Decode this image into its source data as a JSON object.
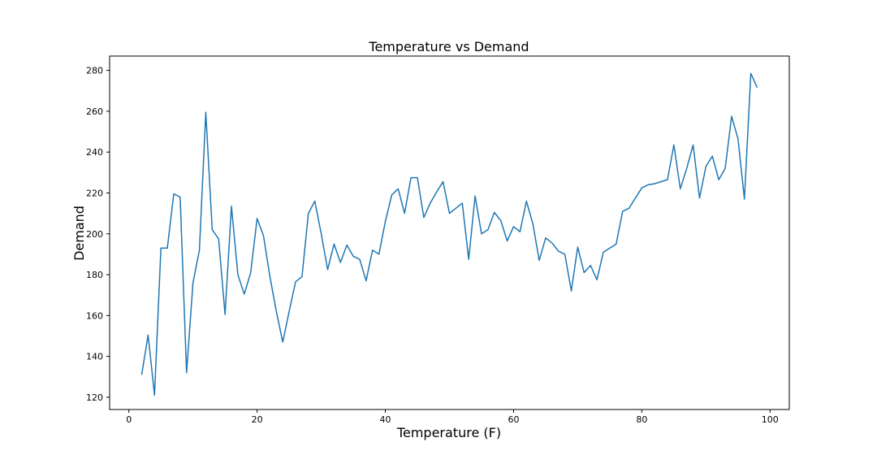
{
  "chart_data": {
    "type": "line",
    "title": "Temperature vs Demand",
    "xlabel": "Temperature (F)",
    "ylabel": "Demand",
    "xlim": [
      -3,
      103
    ],
    "ylim": [
      114,
      287
    ],
    "xticks": [
      0,
      20,
      40,
      60,
      80,
      100
    ],
    "yticks": [
      120,
      140,
      160,
      180,
      200,
      220,
      240,
      260,
      280
    ],
    "grid": false,
    "series": [
      {
        "color": "#1f77b4",
        "x": [
          2,
          3,
          4,
          5,
          6,
          7,
          8,
          9,
          10,
          11,
          12,
          13,
          14,
          15,
          16,
          17,
          18,
          19,
          20,
          21,
          22,
          23,
          24,
          25,
          26,
          27,
          28,
          29,
          30,
          31,
          32,
          33,
          34,
          35,
          36,
          37,
          38,
          39,
          40,
          41,
          42,
          43,
          44,
          45,
          46,
          47,
          48,
          49,
          50,
          51,
          52,
          53,
          54,
          55,
          56,
          57,
          58,
          59,
          60,
          61,
          62,
          63,
          64,
          65,
          66,
          67,
          68,
          69,
          70,
          71,
          72,
          73,
          74,
          75,
          76,
          77,
          78,
          79,
          80,
          81,
          82,
          83,
          84,
          85,
          86,
          87,
          88,
          89,
          90,
          91,
          92,
          93,
          94,
          95,
          96,
          97,
          98
        ],
        "y": [
          131,
          150.5,
          121,
          193,
          193,
          219.5,
          218,
          132,
          176,
          192,
          259.5,
          202,
          197.5,
          160.5,
          213.5,
          180,
          170.5,
          181,
          207.5,
          199,
          179,
          162,
          147,
          162,
          176.5,
          179,
          210,
          216,
          200,
          182.5,
          195,
          186,
          194.5,
          189,
          187.5,
          177,
          192,
          190,
          206,
          219,
          222,
          210,
          227.5,
          227.5,
          208,
          215,
          220.5,
          225.5,
          210,
          212.5,
          215,
          187.5,
          218.5,
          200,
          202,
          210.5,
          206.5,
          196.5,
          203.5,
          201,
          216,
          205,
          187,
          198,
          195.5,
          191.5,
          190,
          172,
          193.5,
          181,
          184.5,
          177.5,
          191,
          193,
          195,
          211,
          212.5,
          217.5,
          222.5,
          224,
          224.5,
          225.5,
          226.5,
          243.5,
          222,
          232,
          243.5,
          217.5,
          233,
          238,
          226.5,
          232,
          257.5,
          246.5,
          217,
          278.5,
          271.5
        ]
      }
    ]
  }
}
